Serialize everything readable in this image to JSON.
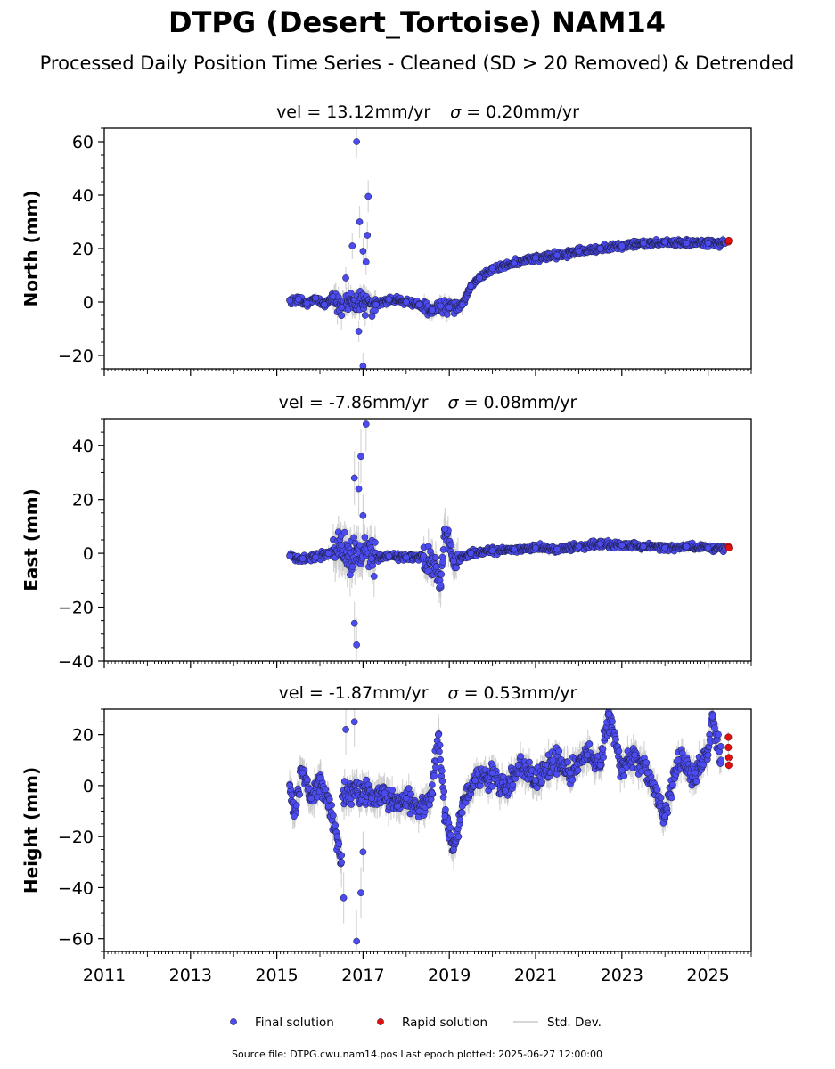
{
  "title": "DTPG (Desert_Tortoise) NAM14",
  "subtitle": "Processed Daily Position Time Series - Cleaned (SD > 20 Removed) & Detrended",
  "footer": "Source file: DTPG.cwu.nam14.pos  Last epoch plotted: 2025-06-27 12:00:00",
  "legend": {
    "placement": "bottom-center",
    "items": [
      {
        "label": "Final solution",
        "kind": "dot",
        "color": "#4b4bf0"
      },
      {
        "label": "Rapid solution",
        "kind": "dot",
        "color": "#e01010"
      },
      {
        "label": "Std. Dev.",
        "kind": "line",
        "color": "#c8c8c8"
      }
    ]
  },
  "colors": {
    "final": "#4b4bf0",
    "rapid": "#e01010",
    "stddev": "#c8c8c8",
    "dot_edge": "#1a1a3a"
  },
  "chart_data": [
    {
      "type": "scatter",
      "panel": "north",
      "subtitle_prefix": "vel = 13.12mm/yr",
      "sigma_value": "= 0.20mm/yr",
      "ylabel": "North (mm)",
      "xlim": [
        2011,
        2026
      ],
      "ylim": [
        -25,
        65
      ],
      "yticks": [
        -20,
        0,
        20,
        40,
        60
      ],
      "ytick_labels": [
        "−20",
        "0",
        "20",
        "40",
        "60"
      ],
      "grid": false,
      "series": [
        {
          "name": "Final solution",
          "values": [
            [
              2015.3,
              0.5,
              1.5
            ],
            [
              2015.5,
              1.0,
              1.8
            ],
            [
              2015.7,
              -0.5,
              1.6
            ],
            [
              2015.9,
              1.5,
              2.0
            ],
            [
              2016.1,
              -1.0,
              2.5
            ],
            [
              2016.3,
              2.0,
              3.0
            ],
            [
              2016.5,
              -2.0,
              3.5
            ],
            [
              2016.6,
              9.0,
              4.0
            ],
            [
              2016.75,
              21.0,
              5.0
            ],
            [
              2016.85,
              60.0,
              6.0
            ],
            [
              2016.92,
              30.0,
              6.0
            ],
            [
              2017.0,
              19.0,
              5.0
            ],
            [
              2017.07,
              15.0,
              5.0
            ],
            [
              2017.12,
              39.5,
              6.0
            ],
            [
              2017.1,
              25.0,
              5.0
            ],
            [
              2017.0,
              -24.0,
              5.0
            ],
            [
              2016.9,
              -11.0,
              4.0
            ],
            [
              2017.05,
              -5.0,
              4.0
            ],
            [
              2017.3,
              -1.0,
              3.0
            ],
            [
              2017.6,
              1.0,
              2.0
            ],
            [
              2018.0,
              0.0,
              1.8
            ],
            [
              2018.3,
              -1.0,
              2.0
            ],
            [
              2018.6,
              -3.0,
              3.5
            ],
            [
              2018.8,
              -1.5,
              4.0
            ],
            [
              2019.0,
              -2.0,
              4.5
            ],
            [
              2019.3,
              -1.0,
              4.0
            ],
            [
              2019.5,
              6.0,
              2.0
            ],
            [
              2019.7,
              9.0,
              1.5
            ],
            [
              2020.0,
              12.5,
              1.2
            ],
            [
              2020.5,
              14.5,
              1.2
            ],
            [
              2021.0,
              16.5,
              1.2
            ],
            [
              2021.5,
              17.5,
              1.2
            ],
            [
              2022.0,
              19.0,
              1.2
            ],
            [
              2022.5,
              20.0,
              1.2
            ],
            [
              2023.0,
              21.0,
              1.2
            ],
            [
              2023.5,
              22.0,
              1.2
            ],
            [
              2024.0,
              22.5,
              1.2
            ],
            [
              2024.5,
              22.0,
              1.2
            ],
            [
              2025.0,
              22.0,
              1.2
            ],
            [
              2025.4,
              22.0,
              1.2
            ]
          ]
        },
        {
          "name": "Rapid solution",
          "values": [
            [
              2025.47,
              22.5,
              1.0
            ],
            [
              2025.48,
              23.0,
              1.0
            ]
          ]
        }
      ]
    },
    {
      "type": "scatter",
      "panel": "east",
      "subtitle_prefix": "vel = -7.86mm/yr",
      "sigma_value": "= 0.08mm/yr",
      "ylabel": "East (mm)",
      "xlim": [
        2011,
        2026
      ],
      "ylim": [
        -40,
        50
      ],
      "yticks": [
        -40,
        -20,
        0,
        20,
        40
      ],
      "ytick_labels": [
        "−40",
        "−20",
        "0",
        "20",
        "40"
      ],
      "grid": false,
      "series": [
        {
          "name": "Final solution",
          "values": [
            [
              2015.3,
              -1.0,
              1.5
            ],
            [
              2015.6,
              -2.0,
              1.8
            ],
            [
              2015.9,
              -1.5,
              2.0
            ],
            [
              2016.2,
              0.0,
              3.0
            ],
            [
              2016.5,
              3.0,
              6.0
            ],
            [
              2016.7,
              -8.0,
              8.0
            ],
            [
              2016.8,
              28.0,
              10.0
            ],
            [
              2016.9,
              24.0,
              10.0
            ],
            [
              2016.95,
              36.0,
              10.0
            ],
            [
              2017.07,
              48.0,
              10.0
            ],
            [
              2016.85,
              -34.0,
              10.0
            ],
            [
              2016.8,
              -26.0,
              8.0
            ],
            [
              2017.0,
              14.0,
              8.0
            ],
            [
              2017.2,
              -2.0,
              3.0
            ],
            [
              2017.6,
              -1.0,
              2.0
            ],
            [
              2018.0,
              -1.5,
              2.0
            ],
            [
              2018.4,
              -1.0,
              2.5
            ],
            [
              2018.7,
              -5.0,
              6.0
            ],
            [
              2018.8,
              -12.0,
              8.0
            ],
            [
              2018.9,
              9.0,
              8.0
            ],
            [
              2019.1,
              -3.0,
              3.0
            ],
            [
              2019.5,
              0.0,
              1.5
            ],
            [
              2020.0,
              1.0,
              1.5
            ],
            [
              2020.5,
              1.5,
              1.5
            ],
            [
              2021.0,
              2.0,
              1.5
            ],
            [
              2021.5,
              1.5,
              1.5
            ],
            [
              2022.0,
              2.5,
              1.5
            ],
            [
              2022.5,
              3.5,
              1.5
            ],
            [
              2023.0,
              3.0,
              1.5
            ],
            [
              2023.5,
              2.5,
              1.5
            ],
            [
              2024.0,
              2.0,
              1.5
            ],
            [
              2024.5,
              2.5,
              1.5
            ],
            [
              2025.0,
              2.0,
              1.5
            ],
            [
              2025.4,
              2.0,
              1.5
            ]
          ]
        },
        {
          "name": "Rapid solution",
          "values": [
            [
              2025.47,
              2.5,
              1.0
            ],
            [
              2025.48,
              2.0,
              1.0
            ]
          ]
        }
      ]
    },
    {
      "type": "scatter",
      "panel": "height",
      "subtitle_prefix": "vel = -1.87mm/yr",
      "sigma_value": "= 0.53mm/yr",
      "ylabel": "Height (mm)",
      "xlim": [
        2011,
        2026
      ],
      "ylim": [
        -65,
        30
      ],
      "yticks": [
        -60,
        -40,
        -20,
        0,
        20
      ],
      "ytick_labels": [
        "−60",
        "−40",
        "−20",
        "0",
        "20"
      ],
      "grid": false,
      "series": [
        {
          "name": "Final solution",
          "values": [
            [
              2015.3,
              0.0,
              4.0
            ],
            [
              2015.4,
              -12.0,
              5.0
            ],
            [
              2015.6,
              5.0,
              5.0
            ],
            [
              2015.8,
              -5.0,
              5.0
            ],
            [
              2016.0,
              3.0,
              6.0
            ],
            [
              2016.2,
              -8.0,
              6.0
            ],
            [
              2016.4,
              -20.0,
              8.0
            ],
            [
              2016.5,
              -30.0,
              10.0
            ],
            [
              2016.55,
              -44.0,
              10.0
            ],
            [
              2016.6,
              22.0,
              10.0
            ],
            [
              2016.8,
              25.0,
              10.0
            ],
            [
              2016.85,
              -61.0,
              12.0
            ],
            [
              2016.95,
              -42.0,
              10.0
            ],
            [
              2017.0,
              -26.0,
              8.0
            ],
            [
              2017.2,
              -5.0,
              6.0
            ],
            [
              2017.5,
              -3.0,
              5.0
            ],
            [
              2017.8,
              -8.0,
              5.0
            ],
            [
              2018.0,
              -5.0,
              5.0
            ],
            [
              2018.3,
              -10.0,
              5.0
            ],
            [
              2018.6,
              -3.0,
              6.0
            ],
            [
              2018.75,
              20.0,
              8.0
            ],
            [
              2018.9,
              -12.0,
              8.0
            ],
            [
              2019.1,
              -25.0,
              8.0
            ],
            [
              2019.3,
              -8.0,
              5.0
            ],
            [
              2019.6,
              2.0,
              5.0
            ],
            [
              2020.0,
              5.0,
              5.0
            ],
            [
              2020.3,
              -2.0,
              5.0
            ],
            [
              2020.6,
              8.0,
              5.0
            ],
            [
              2021.0,
              2.0,
              5.0
            ],
            [
              2021.4,
              10.0,
              5.0
            ],
            [
              2021.8,
              5.0,
              5.0
            ],
            [
              2022.2,
              12.0,
              5.0
            ],
            [
              2022.5,
              8.0,
              5.0
            ],
            [
              2022.7,
              28.0,
              6.0
            ],
            [
              2023.0,
              6.0,
              5.0
            ],
            [
              2023.3,
              12.0,
              5.0
            ],
            [
              2023.6,
              5.0,
              5.0
            ],
            [
              2024.0,
              -12.0,
              5.0
            ],
            [
              2024.3,
              10.0,
              5.0
            ],
            [
              2024.7,
              5.0,
              5.0
            ],
            [
              2025.0,
              12.0,
              5.0
            ],
            [
              2025.1,
              27.0,
              6.0
            ],
            [
              2025.3,
              10.0,
              5.0
            ]
          ]
        },
        {
          "name": "Rapid solution",
          "values": [
            [
              2025.47,
              19.0,
              2.0
            ],
            [
              2025.47,
              15.0,
              2.0
            ],
            [
              2025.48,
              11.0,
              2.0
            ],
            [
              2025.48,
              8.0,
              2.0
            ]
          ]
        }
      ]
    }
  ],
  "xtick_labels": [
    "2011",
    "2013",
    "2015",
    "2017",
    "2019",
    "2021",
    "2023",
    "2025"
  ]
}
